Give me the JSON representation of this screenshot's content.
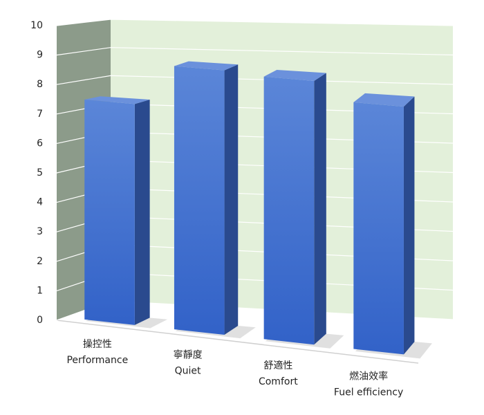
{
  "chart_data": {
    "type": "bar3d",
    "categories": [
      [
        "操控性",
        "Performance"
      ],
      [
        "寧靜度",
        "Quiet"
      ],
      [
        "舒適性",
        "Comfort"
      ],
      [
        "燃油效率",
        "Fuel efficiency"
      ]
    ],
    "values": [
      7.5,
      8.9,
      8.8,
      8.2
    ],
    "color": "#3f6fd0",
    "ylim": [
      0,
      10
    ],
    "yticks": [
      0,
      1,
      2,
      3,
      4,
      5,
      6,
      7,
      8,
      9,
      10
    ],
    "grid": true
  }
}
